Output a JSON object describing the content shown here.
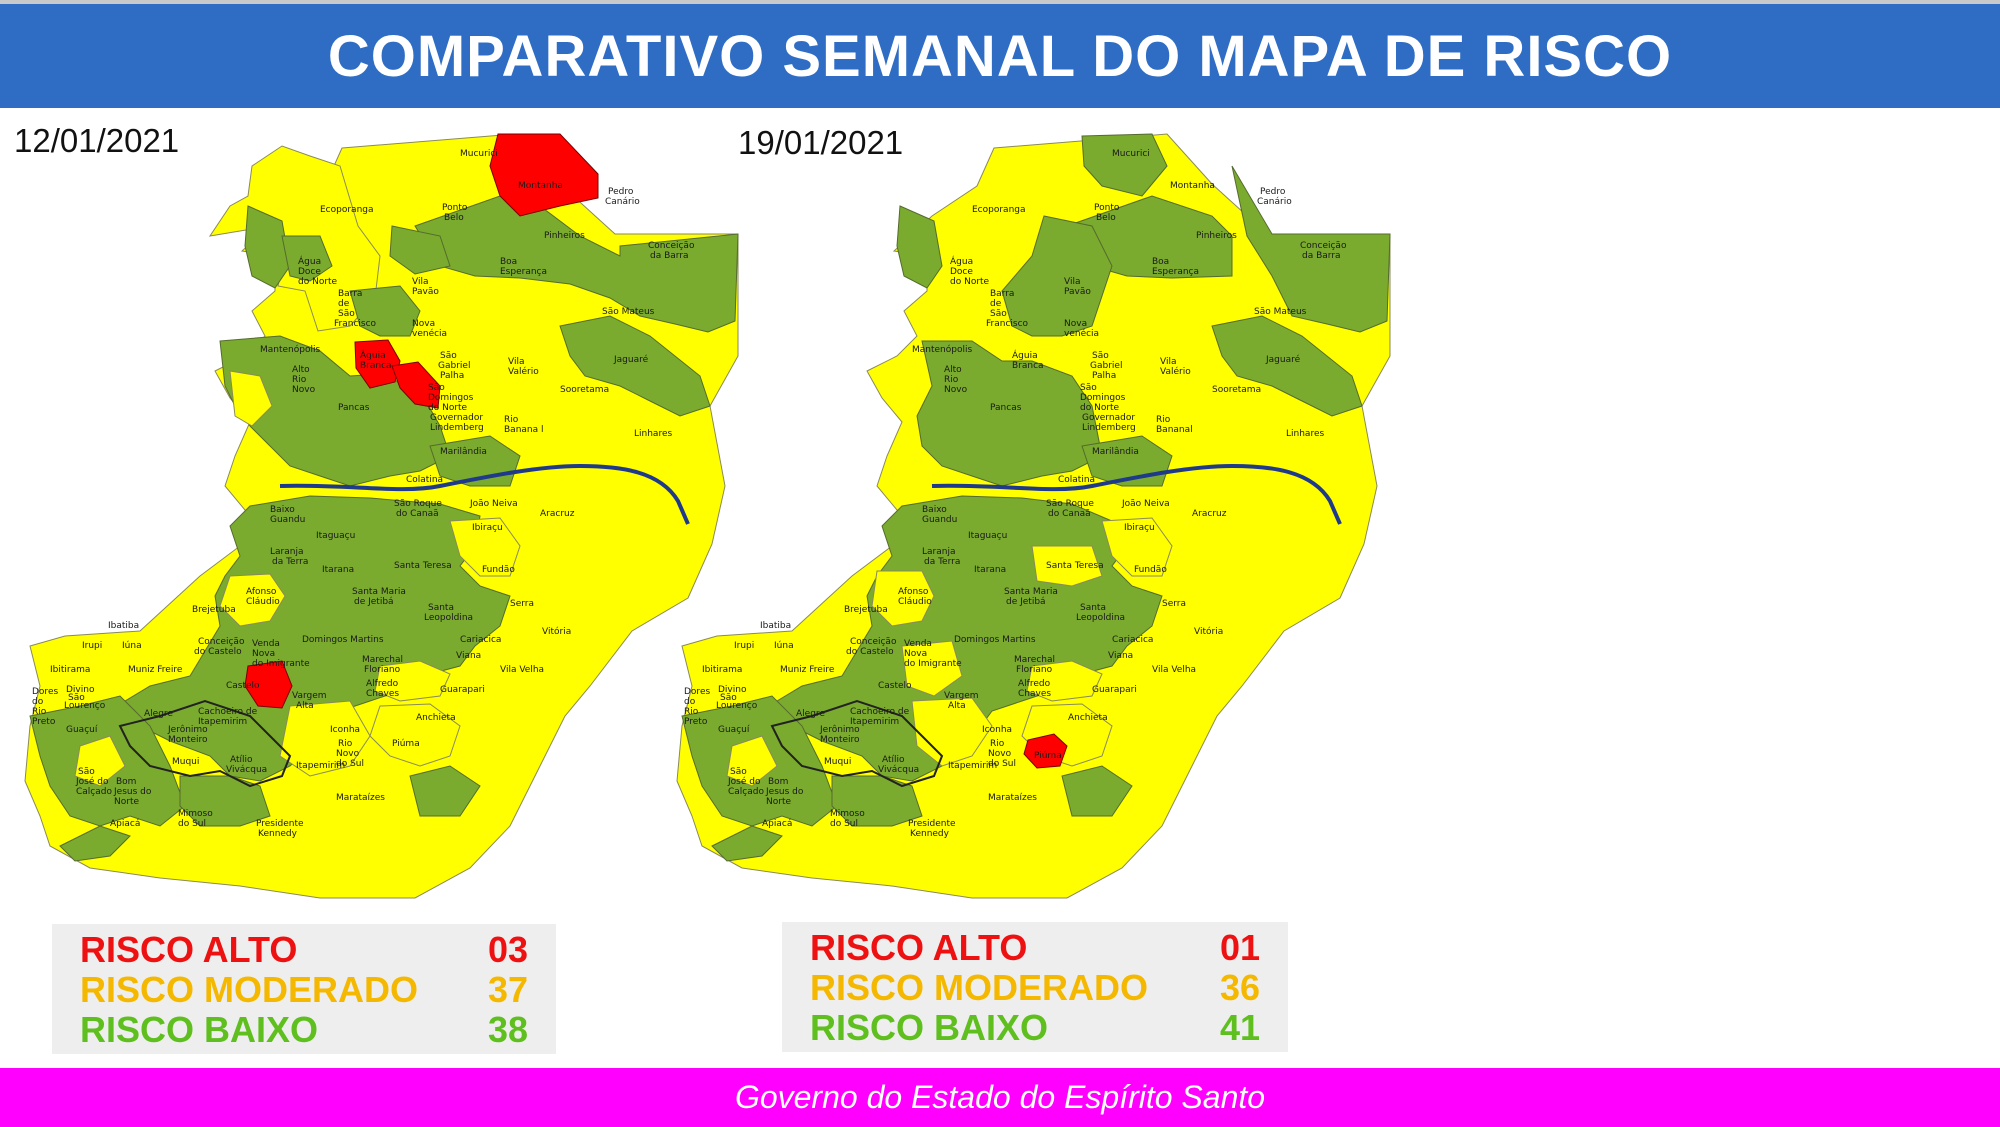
{
  "header": {
    "title": "COMPARATIVO SEMANAL DO MAPA DE RISCO"
  },
  "colors": {
    "header_bg": "#2f6dc4",
    "footer_bg": "#ff00ff",
    "risco_alto": "#ff0000",
    "risco_moderado": "#ffff00",
    "risco_baixo": "#7aab2e",
    "river": "#1f3a8a",
    "alto_text": "#ee1111",
    "moderado_text": "#f5b800",
    "baixo_text": "#5fbf1f"
  },
  "maps": [
    {
      "date": "12/01/2021",
      "legend": [
        {
          "label": "RISCO ALTO",
          "value": "03"
        },
        {
          "label": "RISCO MODERADO",
          "value": "37"
        },
        {
          "label": "RISCO BAIXO",
          "value": "38"
        }
      ],
      "labels": [
        "Mucurici",
        "Montanha",
        "Pedro Canário",
        "Ecoporanga",
        "Ponto Belo",
        "Pinheiros",
        "Conceição da Barra",
        "Boa Esperança",
        "Água Doce do Norte",
        "Barra de São Francisco",
        "Vila Pavão",
        "São Mateus",
        "Nova venécia",
        "Mantenópolis",
        "Águia Branca",
        "São Gabriel Palha",
        "Vila Valério",
        "Jaguaré",
        "Alto Rio Novo",
        "São Domingos do Norte",
        "Sooretama",
        "Pancas",
        "Governador Lindemberg",
        "Rio Bananal",
        "Linhares",
        "Marilândia",
        "Colatina",
        "Baixo Guandu",
        "São Roque do Canaã",
        "João Neiva",
        "Aracruz",
        "Itaguaçu",
        "Ibiraçu",
        "Laranja da Terra",
        "Itarana",
        "Santa Teresa",
        "Fundão",
        "Afonso Cláudio",
        "Santa Maria de Jetibá",
        "Serra",
        "Brejetuba",
        "Santa Leopoldina",
        "Ibatiba",
        "Conceição do Castelo",
        "Domingos Martins",
        "Venda Nova do Imigrante",
        "Vitória",
        "Cariacica",
        "Irupi",
        "Iúna",
        "Viana",
        "Ibitirama",
        "Muniz Freire",
        "Marechal Floriano",
        "Vila Velha",
        "Divino São Lourenço",
        "Castelo",
        "Alfredo Chaves",
        "Dores do Rio Preto",
        "Vargem Alta",
        "Guarapari",
        "Alegre",
        "Cachoeiro de Itapemirim",
        "Guaçuí",
        "Jerônimo Monteiro",
        "Iconha",
        "Anchieta",
        "Rio Novo do Sul",
        "Piúma",
        "Muqui",
        "Atílio Vivácqua",
        "Itapemirim",
        "São José do Calçado",
        "Bom Jesus do Norte",
        "Apiacá",
        "Mimoso do Sul",
        "Presidente Kennedy",
        "Marataízes"
      ]
    },
    {
      "date": "19/01/2021",
      "legend": [
        {
          "label": "RISCO ALTO",
          "value": "01"
        },
        {
          "label": "RISCO MODERADO",
          "value": "36"
        },
        {
          "label": "RISCO BAIXO",
          "value": "41"
        }
      ],
      "labels": [
        "Mucurici",
        "Montanha",
        "Pedro Canário",
        "Ecoporanga",
        "Ponto Belo",
        "Pinheiros",
        "Conceição da Barra",
        "Boa Esperança",
        "Água Doce do Norte",
        "Barra de São Francisco",
        "Vila Pavão",
        "São Mateus",
        "Nova venécia",
        "Mantenópolis",
        "Águia Branca",
        "São Gabriel Palha",
        "Vila Valério",
        "Jaguaré",
        "Alto Rio Novo",
        "São Domingos do Norte",
        "Sooretama",
        "Pancas",
        "Governador Lindemberg",
        "Rio Bananal",
        "Linhares",
        "Marilândia",
        "Colatina",
        "Baixo Guandu",
        "São Roque do Canaã",
        "João Neiva",
        "Aracruz",
        "Itaguaçu",
        "Ibiraçu",
        "Laranja da Terra",
        "Itarana",
        "Santa Teresa",
        "Fundão",
        "Afonso Cláudio",
        "Santa Maria de Jetibá",
        "Serra",
        "Brejetuba",
        "Santa Leopoldina",
        "Ibatiba",
        "Conceição do Castelo",
        "Domingos Martins",
        "Venda Nova do Imigrante",
        "Vitória",
        "Cariacica",
        "Irupi",
        "Iúna",
        "Viana",
        "Ibitirama",
        "Muniz Freire",
        "Marechal Floriano",
        "Vila Velha",
        "Divino São Lourenço",
        "Castelo",
        "Alfredo Chaves",
        "Dores do Rio Preto",
        "Vargem Alta",
        "Guarapari",
        "Alegre",
        "Cachoeiro de Itapemirim",
        "Guaçuí",
        "Jerônimo Monteiro",
        "Iconha",
        "Anchieta",
        "Rio Novo do Sul",
        "Piúma",
        "Muqui",
        "Atílio Vivácqua",
        "Itapemirim",
        "São José do Calçado",
        "Bom Jesus do Norte",
        "Apiacá",
        "Mimoso do Sul",
        "Presidente Kennedy",
        "Marataízes"
      ]
    }
  ],
  "footer": {
    "text": "Governo do Estado do Espírito Santo"
  }
}
